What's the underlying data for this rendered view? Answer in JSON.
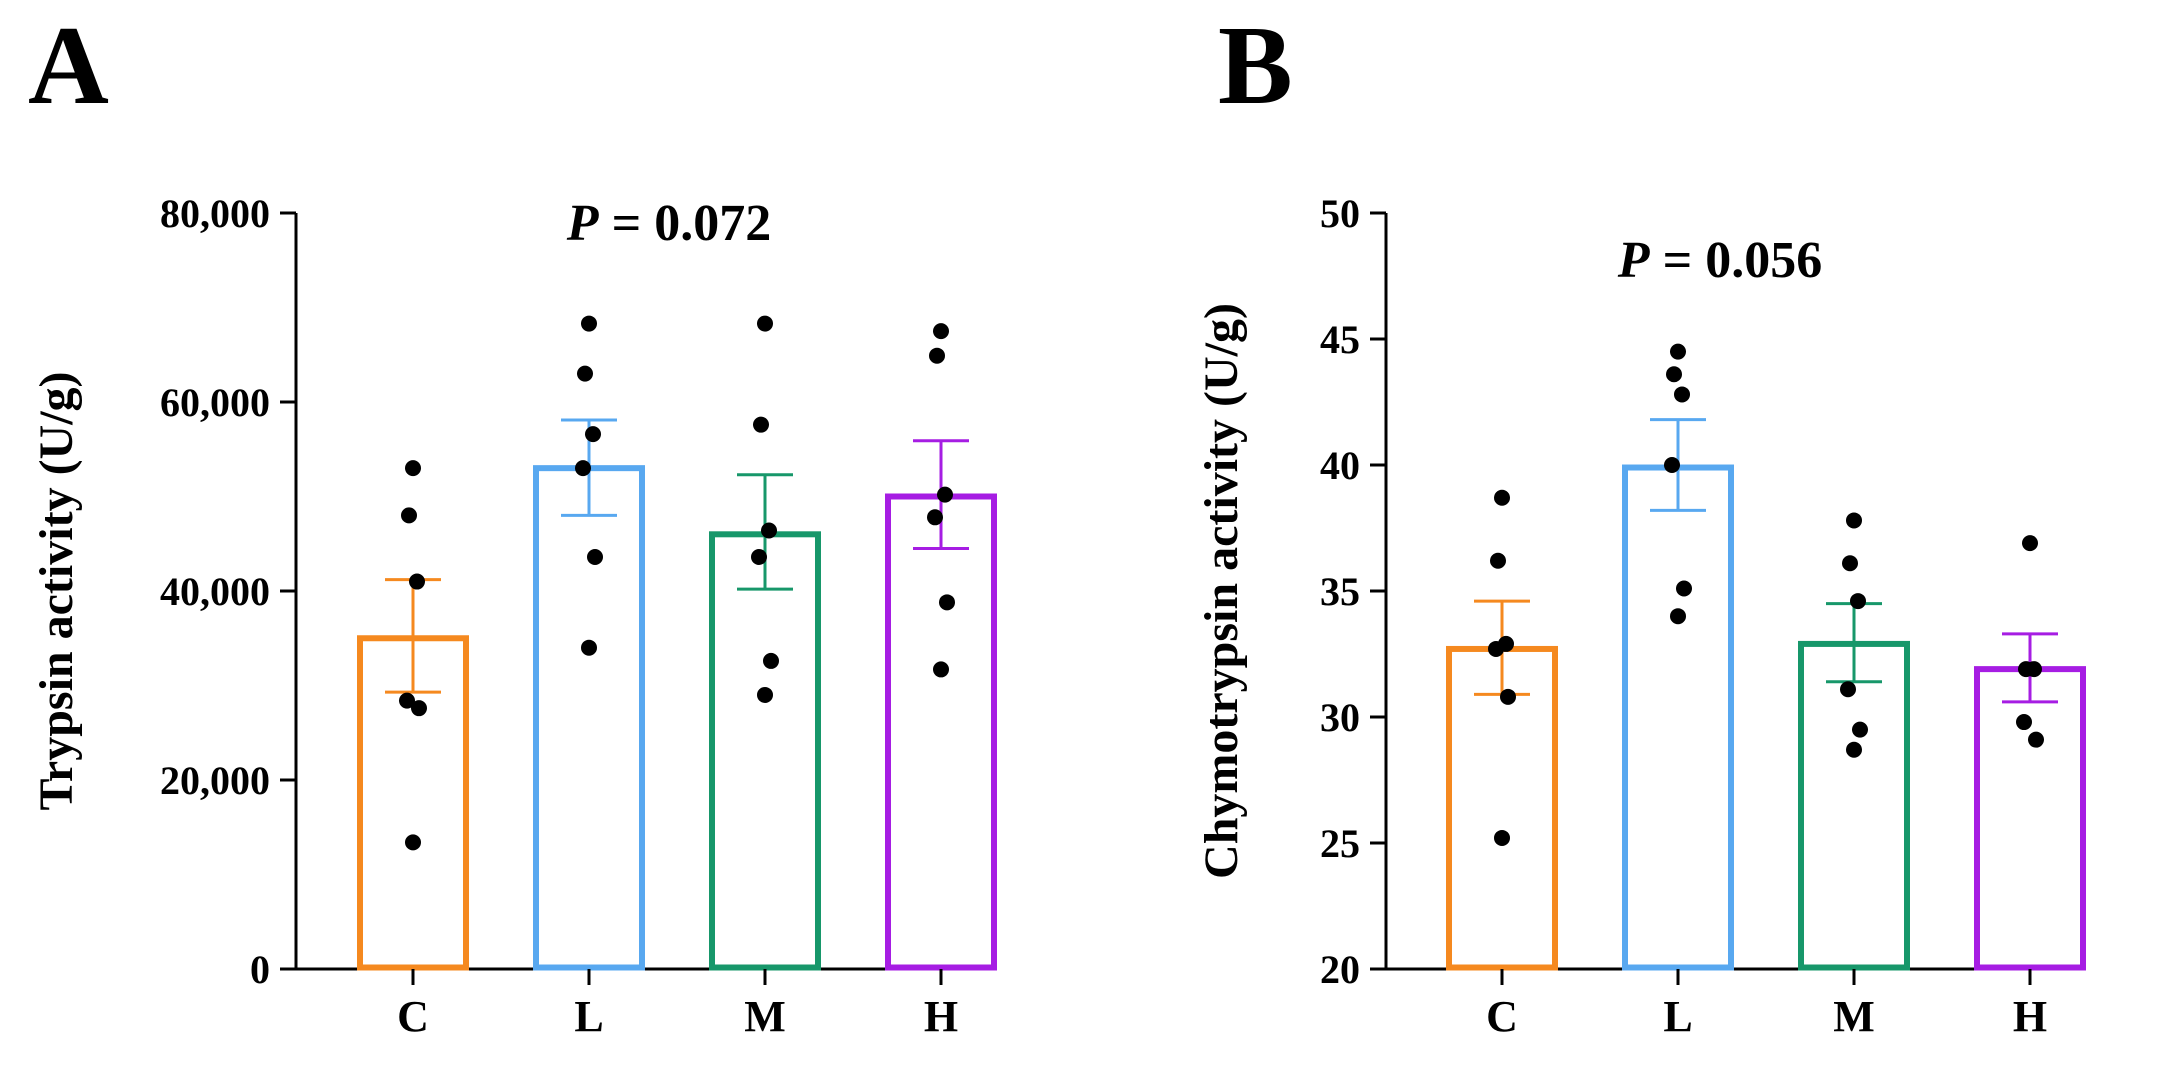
{
  "chart_data": [
    {
      "type": "bar",
      "panel_label": "A",
      "annotation": {
        "prefix": "P",
        "text": " = 0.072"
      },
      "xlabel": "",
      "ylabel": "Trypsin activity (U/g)",
      "ylim": [
        0,
        80000
      ],
      "yticks": [
        0,
        20000,
        40000,
        60000,
        80000
      ],
      "ytick_labels": [
        "0",
        "20,000",
        "40,000",
        "60,000",
        "80,000"
      ],
      "categories": [
        "C",
        "L",
        "M",
        "H"
      ],
      "colors": [
        "#F5891F",
        "#58A8F0",
        "#17976A",
        "#A61DE3"
      ],
      "values": [
        35000,
        53000,
        46000,
        50000
      ],
      "error_low": [
        29300,
        48000,
        40200,
        44500
      ],
      "error_high": [
        41200,
        58100,
        52300,
        55900
      ],
      "points": [
        [
          53000,
          48000,
          41000,
          28400,
          27600,
          13400
        ],
        [
          68300,
          63000,
          56600,
          53000,
          43600,
          34000
        ],
        [
          68300,
          57600,
          46400,
          43600,
          32600,
          29000
        ],
        [
          67500,
          64900,
          50200,
          47800,
          38800,
          31700
        ]
      ]
    },
    {
      "type": "bar",
      "panel_label": "B",
      "annotation": {
        "prefix": "P",
        "text": " = 0.056"
      },
      "xlabel": "",
      "ylabel": "Chymotrypsin activity (U/g)",
      "ylim": [
        20,
        50
      ],
      "yticks": [
        20,
        25,
        30,
        35,
        40,
        45,
        50
      ],
      "ytick_labels": [
        "20",
        "25",
        "30",
        "35",
        "40",
        "45",
        "50"
      ],
      "categories": [
        "C",
        "L",
        "M",
        "H"
      ],
      "colors": [
        "#F5891F",
        "#58A8F0",
        "#17976A",
        "#A61DE3"
      ],
      "values": [
        32.7,
        39.9,
        32.9,
        31.9
      ],
      "error_low": [
        30.9,
        38.2,
        31.4,
        30.6
      ],
      "error_high": [
        34.6,
        41.8,
        34.5,
        33.3
      ],
      "points": [
        [
          38.7,
          36.2,
          32.9,
          32.7,
          30.8,
          25.2
        ],
        [
          44.5,
          43.6,
          42.8,
          40.0,
          35.1,
          34.0
        ],
        [
          37.8,
          36.1,
          34.6,
          31.1,
          29.5,
          28.7
        ],
        [
          36.9,
          31.9,
          31.9,
          29.8,
          29.1
        ]
      ]
    }
  ]
}
